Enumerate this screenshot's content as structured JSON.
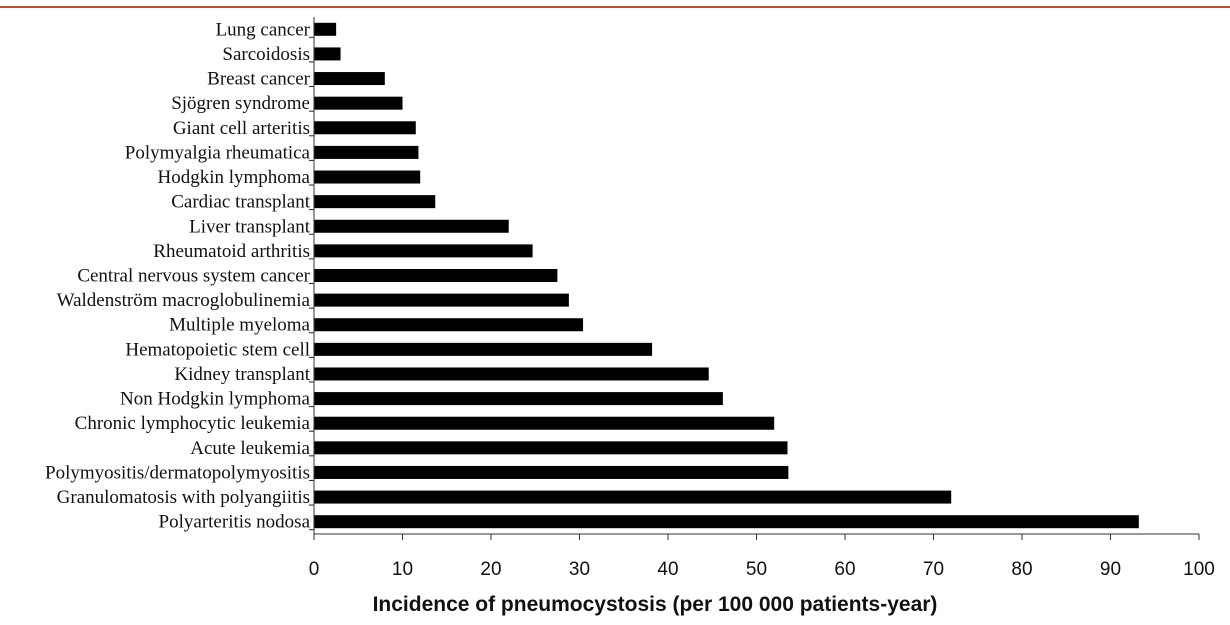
{
  "chart_data": {
    "type": "bar",
    "orientation": "horizontal",
    "categories": [
      "Lung cancer",
      "Sarcoidosis",
      "Breast cancer",
      "Sjögren syndrome",
      "Giant cell arteritis",
      "Polymyalgia rheumatica",
      "Hodgkin lymphoma",
      "Cardiac transplant",
      "Liver transplant",
      "Rheumatoid arthritis",
      "Central nervous system cancer",
      "Waldenström macroglobulinemia",
      "Multiple myeloma",
      "Hematopoietic stem cell",
      "Kidney transplant",
      "Non Hodgkin lymphoma",
      "Chronic lymphocytic leukemia",
      "Acute leukemia",
      "Polymyositis/dermatopolymyositis",
      "Granulomatosis with polyangiitis",
      "Polyarteritis nodosa"
    ],
    "values": [
      2.5,
      3,
      8,
      10,
      11.5,
      11.8,
      12,
      13.7,
      22,
      24.7,
      27.5,
      28.8,
      30.4,
      38.2,
      44.6,
      46.2,
      52,
      53.5,
      53.6,
      72,
      93.2
    ],
    "xlabel": "Incidence of pneumocystosis (per 100 000 patients-year)",
    "xlim": [
      0,
      100
    ],
    "xticks": [
      0,
      10,
      20,
      30,
      40,
      50,
      60,
      70,
      80,
      90,
      100
    ],
    "bar_color": "#000000",
    "grid": false
  }
}
